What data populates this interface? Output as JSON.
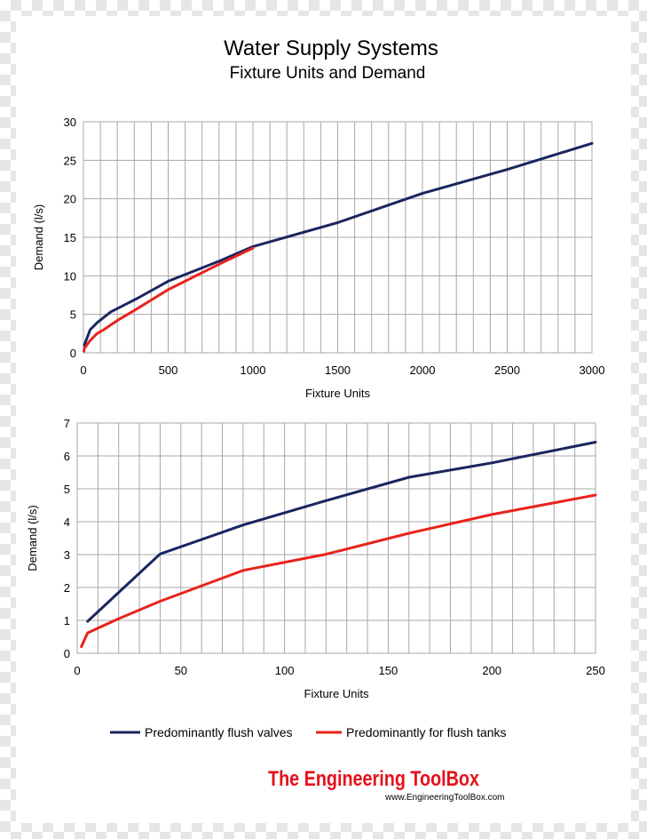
{
  "title": "Water Supply Systems",
  "subtitle": "Fixture Units and Demand",
  "colors": {
    "flush_valves": "#1a2660",
    "flush_tanks": "#e8231c"
  },
  "chart_data": [
    {
      "type": "line",
      "xlabel": "Fixture Units",
      "ylabel": "Demand (l/s)",
      "xlim": [
        0,
        3000
      ],
      "ylim": [
        0,
        30
      ],
      "xticks": [
        0,
        500,
        1000,
        1500,
        2000,
        2500,
        3000
      ],
      "yticks": [
        0,
        5,
        10,
        15,
        20,
        25,
        30
      ],
      "xgrid_step": 100,
      "grid": true,
      "series": [
        {
          "name": "Predominantly flush valves",
          "color": "#1a2660",
          "x": [
            5,
            40,
            80,
            160,
            240,
            320,
            500,
            800,
            1000,
            1500,
            2000,
            2500,
            3000
          ],
          "y": [
            1,
            3,
            3.9,
            5.3,
            6.2,
            7.1,
            9.3,
            11.9,
            13.8,
            16.9,
            20.7,
            23.8,
            27.2
          ]
        },
        {
          "name": "Predominantly for flush tanks",
          "color": "#e8231c",
          "x": [
            3,
            6,
            20,
            40,
            80,
            120,
            160,
            200,
            300,
            500,
            800,
            1000
          ],
          "y": [
            0.2,
            0.6,
            1,
            1.6,
            2.5,
            3,
            3.6,
            4.2,
            5.5,
            8.2,
            11.5,
            13.6
          ]
        }
      ]
    },
    {
      "type": "line",
      "xlabel": "Fixture Units",
      "ylabel": "Demand (l/s)",
      "xlim": [
        0,
        250
      ],
      "ylim": [
        0,
        7
      ],
      "xticks": [
        0,
        50,
        100,
        150,
        200,
        250
      ],
      "yticks": [
        0,
        1,
        2,
        3,
        4,
        5,
        6,
        7
      ],
      "xgrid_step": 10,
      "grid": true,
      "series": [
        {
          "name": "Predominantly flush valves",
          "color": "#1a2660",
          "x": [
            5,
            40,
            80,
            120,
            160,
            200,
            250
          ],
          "y": [
            0.97,
            3.02,
            3.9,
            4.64,
            5.35,
            5.79,
            6.42
          ]
        },
        {
          "name": "Predominantly for flush tanks",
          "color": "#e8231c",
          "x": [
            2,
            5,
            20,
            40,
            80,
            120,
            160,
            200,
            250
          ],
          "y": [
            0.2,
            0.62,
            1.05,
            1.58,
            2.52,
            3.01,
            3.65,
            4.22,
            4.81
          ]
        }
      ]
    }
  ],
  "legend": {
    "items": [
      {
        "label": "Predominantly flush valves",
        "color": "#1a2660"
      },
      {
        "label": "Predominantly for flush tanks",
        "color": "#e8231c"
      }
    ]
  },
  "branding": {
    "title": "The Engineering ToolBox",
    "url": "www.EngineeringToolBox.com"
  }
}
